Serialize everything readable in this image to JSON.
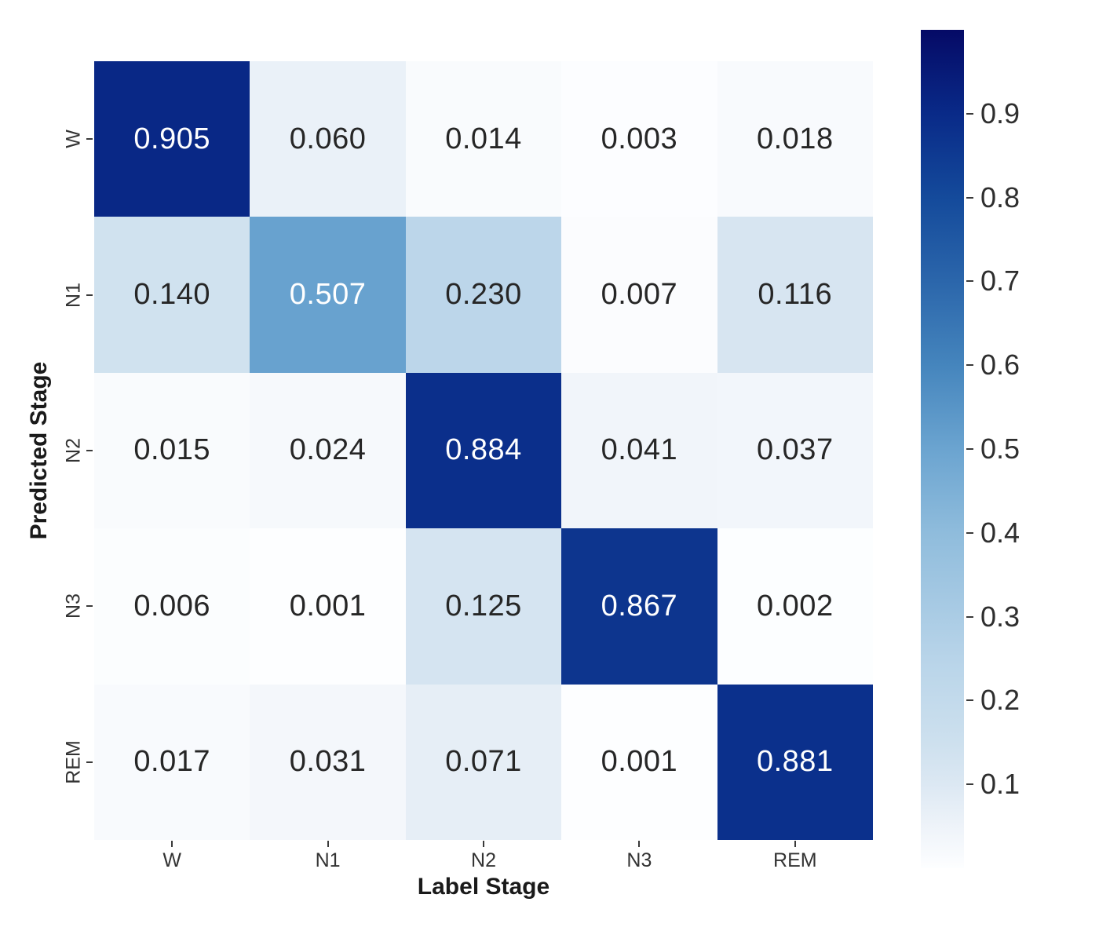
{
  "chart_data": {
    "type": "heatmap",
    "title": "",
    "xlabel": "Label Stage",
    "ylabel": "Predicted Stage",
    "x_categories": [
      "W",
      "N1",
      "N2",
      "N3",
      "REM"
    ],
    "y_categories": [
      "W",
      "N1",
      "N2",
      "N3",
      "REM"
    ],
    "rows": [
      [
        0.905,
        0.06,
        0.014,
        0.003,
        0.018
      ],
      [
        0.14,
        0.507,
        0.23,
        0.007,
        0.116
      ],
      [
        0.015,
        0.024,
        0.884,
        0.041,
        0.037
      ],
      [
        0.006,
        0.001,
        0.125,
        0.867,
        0.002
      ],
      [
        0.017,
        0.031,
        0.071,
        0.001,
        0.881
      ]
    ],
    "value_decimals": 3,
    "grid": false,
    "legend_position": "right-colorbar",
    "colorbar": {
      "vmin": 0,
      "vmax": 1,
      "tick_values": [
        0.9,
        0.8,
        0.7,
        0.6,
        0.5,
        0.4,
        0.3,
        0.2,
        0.1
      ],
      "tick_decimals": 1
    },
    "colormap": {
      "name": "blues-dark",
      "stops": [
        [
          0.0,
          "#fdfeff"
        ],
        [
          0.05,
          "#eef3f9"
        ],
        [
          0.1,
          "#dce8f3"
        ],
        [
          0.15,
          "#cde0ee"
        ],
        [
          0.25,
          "#b8d4e9"
        ],
        [
          0.4,
          "#8fbcdc"
        ],
        [
          0.5,
          "#6ba4d0"
        ],
        [
          0.6,
          "#4585bd"
        ],
        [
          0.7,
          "#2b66ab"
        ],
        [
          0.8,
          "#144a9b"
        ],
        [
          0.9,
          "#092a88"
        ],
        [
          1.0,
          "#050a66"
        ]
      ],
      "annotation_light_text": "#ffffff",
      "annotation_dark_text": "#262626",
      "white_text_threshold": 0.45
    }
  }
}
